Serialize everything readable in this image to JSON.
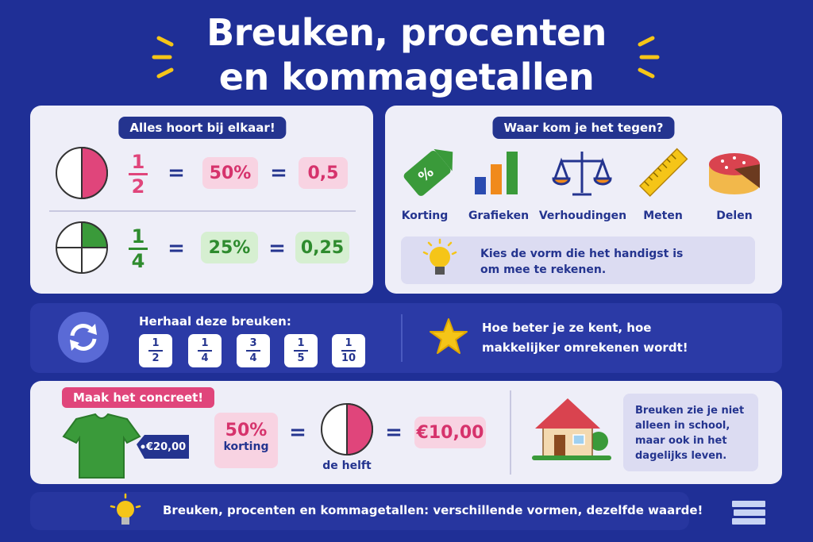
{
  "title": {
    "line1": "Breuken, procenten",
    "line2": "en kommagetallen"
  },
  "equivalents": {
    "heading": "Alles hoort bij elkaar!",
    "rows": [
      {
        "numerator": "1",
        "denominator": "2",
        "percent": "50%",
        "decimal": "0,5"
      },
      {
        "numerator": "1",
        "denominator": "4",
        "percent": "25%",
        "decimal": "0,25"
      }
    ]
  },
  "usage": {
    "heading": "Waar kom je het tegen?",
    "items": [
      "Korting",
      "Grafieken",
      "Verhoudingen",
      "Meten",
      "Delen"
    ],
    "tip": "Kies de vorm die het handigst is om mee te rekenen."
  },
  "repeat": {
    "label": "Herhaal deze breuken:",
    "fractions": [
      [
        "1",
        "2"
      ],
      [
        "1",
        "4"
      ],
      [
        "3",
        "4"
      ],
      [
        "1",
        "5"
      ],
      [
        "1",
        "10"
      ]
    ],
    "message": "Hoe beter je ze kent, hoe makkelijker omrekenen wordt!"
  },
  "concrete": {
    "heading": "Maak het concreet!",
    "price": "€20,00",
    "percent": "50%",
    "percent_note": "korting",
    "half": "de helft",
    "result": "€10,00",
    "note": "Breuken zie je niet alleen in school, maar ook in het dagelijks leven."
  },
  "footer": "Breuken, procenten en kommagetallen: verschillende vormen, dezelfde waarde!"
}
